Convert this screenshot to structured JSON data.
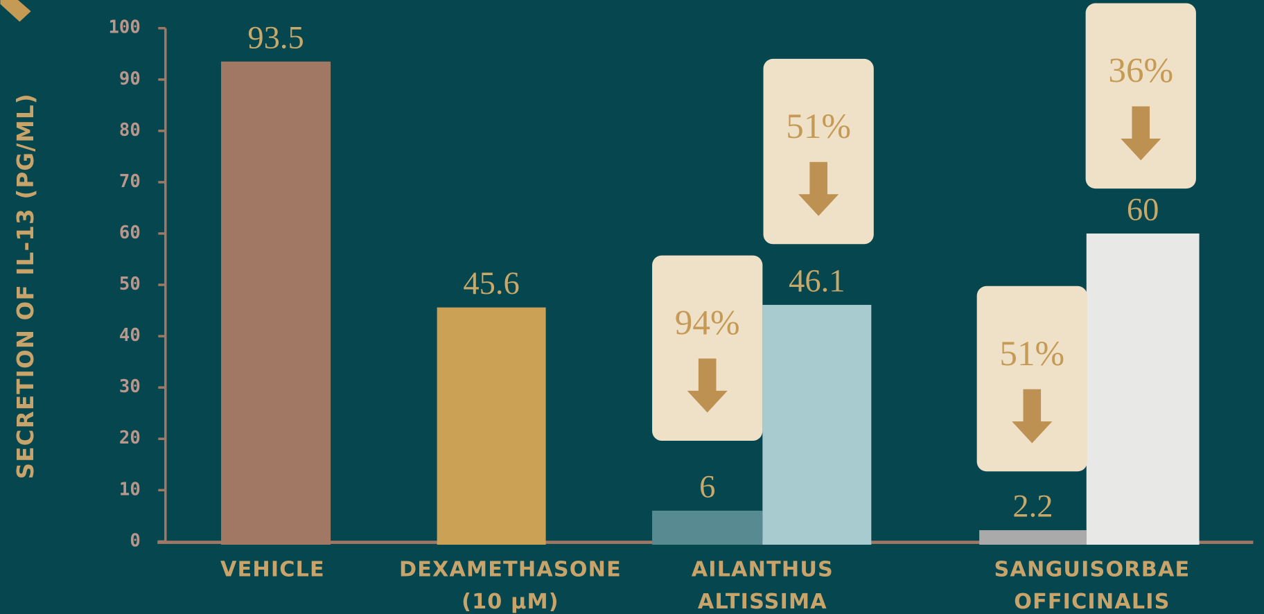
{
  "chart_data": {
    "type": "bar",
    "ylabel": "SECRETION OF IL-13 (PG/ML)",
    "ylim": [
      0,
      100
    ],
    "yticks": [
      0,
      10,
      20,
      30,
      40,
      50,
      60,
      70,
      80,
      90,
      100
    ],
    "categories": [
      [
        "VEHICLE"
      ],
      [
        "DEXAMETHASONE",
        "(10 µM)"
      ],
      [
        "AILANTHUS",
        "ALTISSIMA"
      ],
      [
        "SANGUISORBAE",
        "OFFICINALIS"
      ]
    ],
    "bars": [
      {
        "value": 93.5,
        "color": "#a07864"
      },
      {
        "value": 45.6,
        "color": "#cba155"
      },
      {
        "value": 6,
        "color": "#588a91"
      },
      {
        "value": 46.1,
        "color": "#a8cbcf"
      },
      {
        "value": 2.2,
        "color": "#aaaaaa"
      },
      {
        "value": 60,
        "color": "#e8e8e6"
      }
    ],
    "annotations": [
      "94%",
      "51%",
      "51%",
      "36%"
    ]
  }
}
